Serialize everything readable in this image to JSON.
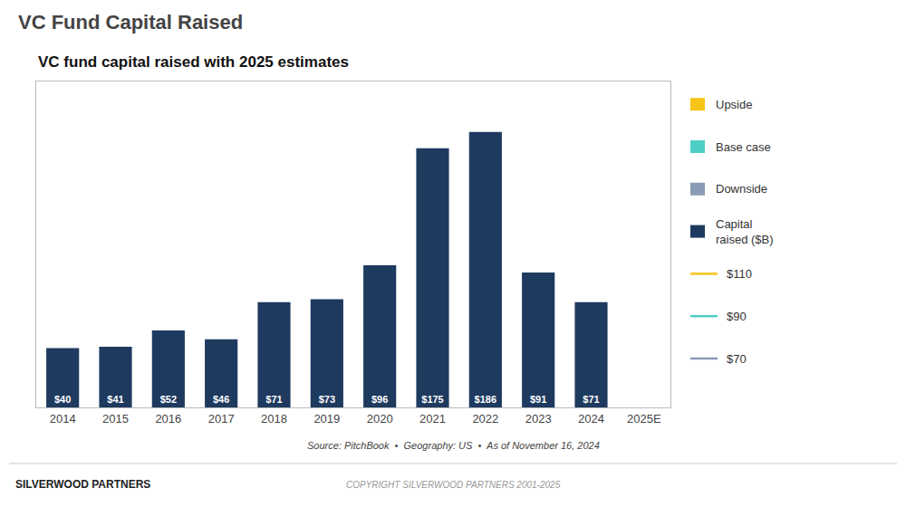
{
  "chart_data": {
    "type": "bar",
    "title": "VC Fund Capital Raised",
    "subtitle": "VC fund capital raised with 2025 estimates",
    "categories": [
      "2014",
      "2015",
      "2016",
      "2017",
      "2018",
      "2019",
      "2020",
      "2021",
      "2022",
      "2023",
      "2024",
      "2025E"
    ],
    "series": [
      {
        "name": "Upside",
        "color": "#f5c518",
        "values": [
          null,
          null,
          null,
          null,
          null,
          null,
          null,
          null,
          null,
          null,
          null,
          null
        ]
      },
      {
        "name": "Base case",
        "color": "#4ecdc4",
        "values": [
          null,
          null,
          null,
          null,
          null,
          null,
          null,
          null,
          null,
          null,
          null,
          null
        ]
      },
      {
        "name": "Downside",
        "color": "#8a9bb5",
        "values": [
          null,
          null,
          null,
          null,
          null,
          null,
          null,
          null,
          null,
          null,
          null,
          null
        ]
      },
      {
        "name": "Capital\nraised ($B)",
        "color": "#1e3a5f",
        "values": [
          40,
          41,
          52,
          46,
          71,
          73,
          96,
          175,
          186,
          91,
          71,
          null
        ],
        "value_labels": [
          "$40",
          "$41",
          "$52",
          "$46",
          "$71",
          "$73",
          "$96",
          "$175",
          "$186",
          "$91",
          "$71",
          null
        ]
      },
      {
        "name": "$110",
        "type": "line",
        "color": "#f5c518",
        "values": [
          null,
          null,
          null,
          null,
          null,
          null,
          null,
          null,
          null,
          null,
          null,
          null
        ]
      },
      {
        "name": "$90",
        "type": "line",
        "color": "#4ecdc4",
        "values": [
          null,
          null,
          null,
          null,
          null,
          null,
          null,
          null,
          null,
          null,
          null,
          null
        ]
      },
      {
        "name": "$70",
        "type": "line",
        "color": "#8a9bb5",
        "values": [
          null,
          null,
          null,
          null,
          null,
          null,
          null,
          null,
          null,
          null,
          null,
          null
        ]
      }
    ],
    "ylim": [
      0,
      220
    ],
    "grid": false,
    "legend": "right",
    "data_labels": true,
    "tick_labels": "x",
    "annotations": [
      "Source: PitchBook  •  Geography: US  •  As of November 16, 2024",
      "SILVERWOOD PARTNERS",
      "COPYRIGHT SILVERWOOD PARTNERS 2001-2025"
    ]
  }
}
